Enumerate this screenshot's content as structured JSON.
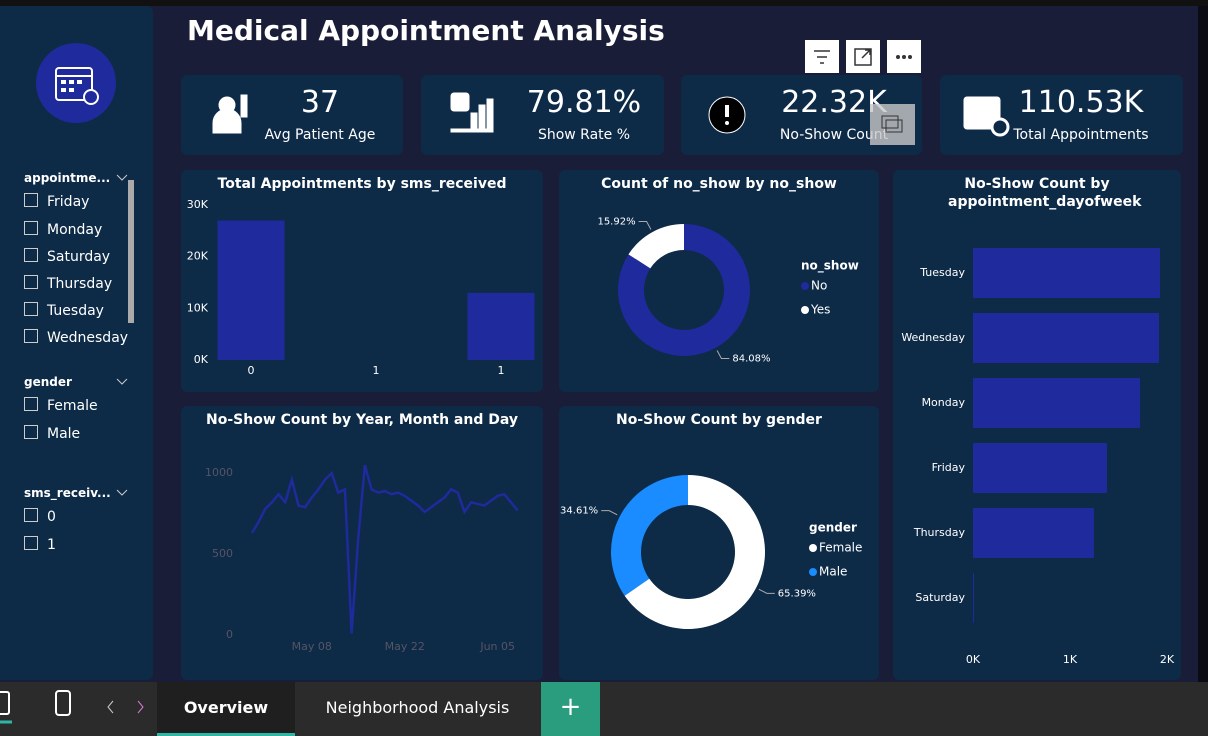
{
  "header": {
    "title": "Medical Appointment Analysis"
  },
  "kpis": [
    {
      "value": "37",
      "label": "Avg Patient Age"
    },
    {
      "value": "79.81%",
      "label": "Show Rate %"
    },
    {
      "value": "22.32K",
      "label": "No-Show Count"
    },
    {
      "value": "110.53K",
      "label": "Total Appointments"
    }
  ],
  "slicers": [
    {
      "title": "appointme...",
      "items": [
        "Friday",
        "Monday",
        "Saturday",
        "Thursday",
        "Tuesday",
        "Wednesday"
      ]
    },
    {
      "title": "gender",
      "items": [
        "Female",
        "Male"
      ]
    },
    {
      "title": "sms_receiv...",
      "items": [
        "0",
        "1"
      ]
    }
  ],
  "chart_data": [
    {
      "type": "bar",
      "title": "Total Appointments by sms_received",
      "categories": [
        "0",
        "1",
        "1"
      ],
      "values": [
        27000,
        0,
        13000
      ],
      "color": "#1f2a9c",
      "ylim": [
        0,
        30000
      ],
      "yticks": [
        {
          "value": 0,
          "label": "0K"
        },
        {
          "value": 10000,
          "label": "10K"
        },
        {
          "value": 20000,
          "label": "20K"
        },
        {
          "value": 30000,
          "label": "30K"
        }
      ]
    },
    {
      "type": "pie",
      "title": "Count of no_show by no_show",
      "legend_title": "no_show",
      "categories": [
        "No",
        "Yes"
      ],
      "values": [
        84.08,
        15.92
      ],
      "value_labels": [
        "84.08%",
        "15.92%"
      ],
      "colors": [
        "#1f2a9c",
        "#ffffff"
      ]
    },
    {
      "type": "bar",
      "orientation": "horizontal",
      "title": "No-Show Count by appointment_dayofweek",
      "categories": [
        "Tuesday",
        "Wednesday",
        "Monday",
        "Friday",
        "Thursday",
        "Saturday"
      ],
      "values": [
        1928,
        1918,
        1722,
        1381,
        1247,
        10
      ],
      "color": "#1f2a9c",
      "xlim": [
        0,
        2000
      ],
      "xticks": [
        {
          "value": 0,
          "label": "0K"
        },
        {
          "value": 1000,
          "label": "1K"
        },
        {
          "value": 2000,
          "label": "2K"
        }
      ]
    },
    {
      "type": "line",
      "title": "No-Show Count by Year, Month and Day",
      "categories": [
        null,
        null,
        null,
        null,
        null,
        null,
        null,
        null,
        null,
        "May 08",
        null,
        null,
        null,
        null,
        null,
        null,
        null,
        null,
        null,
        null,
        null,
        null,
        null,
        "May 22",
        null,
        null,
        null,
        null,
        null,
        null,
        null,
        null,
        null,
        null,
        null,
        null,
        null,
        "Jun 05",
        null,
        null,
        null
      ],
      "values": [
        630,
        700,
        780,
        820,
        870,
        820,
        960,
        800,
        790,
        850,
        900,
        960,
        1000,
        880,
        900,
        10,
        600,
        1050,
        900,
        880,
        890,
        870,
        880,
        860,
        830,
        800,
        760,
        790,
        820,
        850,
        900,
        880,
        760,
        820,
        810,
        800,
        830,
        860,
        870,
        820,
        770
      ],
      "color": "#1f2a9c",
      "ylim": [
        0,
        1100
      ],
      "yticks": [
        0,
        500,
        1000
      ]
    },
    {
      "type": "pie",
      "title": "No-Show Count by gender",
      "legend_title": "gender",
      "categories": [
        "Female",
        "Male"
      ],
      "values": [
        65.39,
        34.61
      ],
      "value_labels": [
        "65.39%",
        "34.61%"
      ],
      "colors": [
        "#ffffff",
        "#1a8cff"
      ]
    }
  ],
  "tabs": [
    "Overview",
    "Neighborhood Analysis"
  ]
}
